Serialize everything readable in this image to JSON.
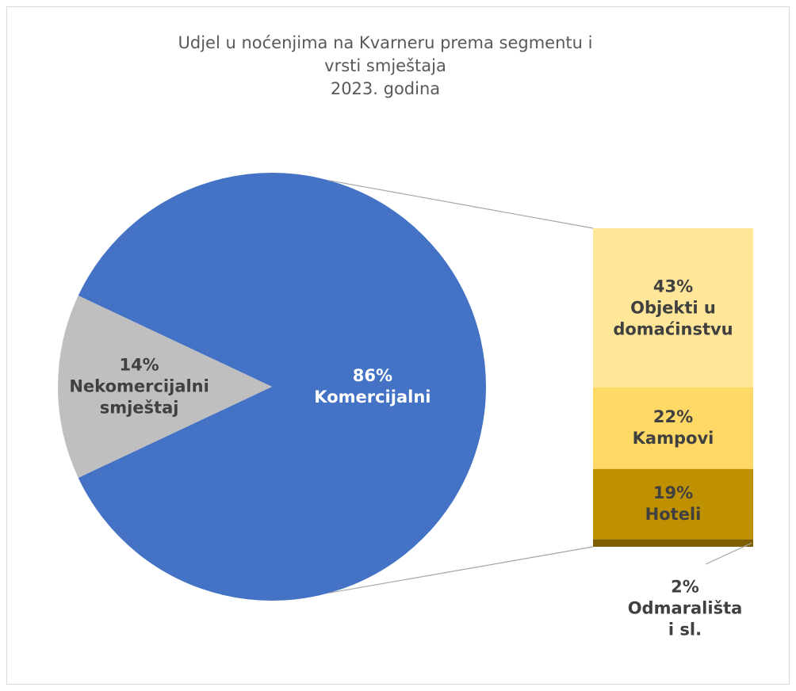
{
  "chart_data": {
    "type": "pie",
    "title": "Udjel u noćenjima na Kvarneru prema segmentu i vrsti smještaja",
    "subtitle": "2023. godina",
    "categories": [
      "Komercijalni",
      "Nekomercijalni smještaj"
    ],
    "values": [
      86,
      14
    ],
    "value_labels": [
      "86%",
      "14%"
    ],
    "colors": [
      "#4472c4",
      "#bfbfbf"
    ],
    "label_colors": [
      "#ffffff",
      "#404040"
    ],
    "breakdown": {
      "type": "bar",
      "categories": [
        "Objekti u domaćinstvu",
        "Kampovi",
        "Hoteli",
        "Odmarališta i sl."
      ],
      "values": [
        43,
        22,
        19,
        2
      ],
      "value_labels": [
        "43%",
        "22%",
        "19%",
        "2%"
      ],
      "colors": [
        "#ffe699",
        "#ffd966",
        "#bf9000",
        "#7f6000"
      ]
    }
  }
}
